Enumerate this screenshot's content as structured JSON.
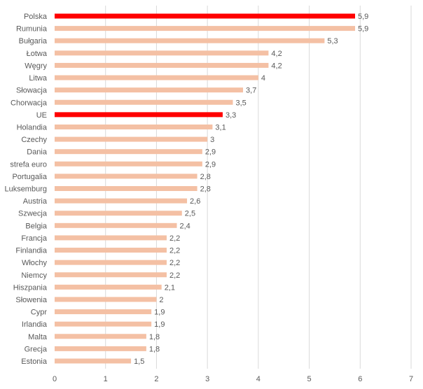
{
  "chart_data": {
    "type": "bar",
    "orientation": "horizontal",
    "title": "",
    "xlabel": "",
    "ylabel": "",
    "xlim": [
      0,
      7
    ],
    "xticks": [
      "0",
      "1",
      "2",
      "3",
      "4",
      "5",
      "6",
      "7"
    ],
    "grid": true,
    "legend": "none",
    "colors": {
      "default": "#f4c0a4",
      "highlight": "#ff0000"
    },
    "highlight": [
      "Polska",
      "UE"
    ],
    "categories": [
      "Polska",
      "Rumunia",
      "Bułgaria",
      "Łotwa",
      "Węgry",
      "Litwa",
      "Słowacja",
      "Chorwacja",
      "UE",
      "Holandia",
      "Czechy",
      "Dania",
      "strefa euro",
      "Portugalia",
      "Luksemburg",
      "Austria",
      "Szwecja",
      "Belgia",
      "Francja",
      "Finlandia",
      "Włochy",
      "Niemcy",
      "Hiszpania",
      "Słowenia",
      "Cypr",
      "Irlandia",
      "Malta",
      "Grecja",
      "Estonia"
    ],
    "values": [
      5.9,
      5.9,
      5.3,
      4.2,
      4.2,
      4,
      3.7,
      3.5,
      3.3,
      3.1,
      3,
      2.9,
      2.9,
      2.8,
      2.8,
      2.6,
      2.5,
      2.4,
      2.2,
      2.2,
      2.2,
      2.2,
      2.1,
      2,
      1.9,
      1.9,
      1.8,
      1.8,
      1.5
    ],
    "value_labels": [
      "5,9",
      "5,9",
      "5,3",
      "4,2",
      "4,2",
      "4",
      "3,7",
      "3,5",
      "3,3",
      "3,1",
      "3",
      "2,9",
      "2,9",
      "2,8",
      "2,8",
      "2,6",
      "2,5",
      "2,4",
      "2,2",
      "2,2",
      "2,2",
      "2,2",
      "2,1",
      "2",
      "1,9",
      "1,9",
      "1,8",
      "1,8",
      "1,5"
    ]
  }
}
